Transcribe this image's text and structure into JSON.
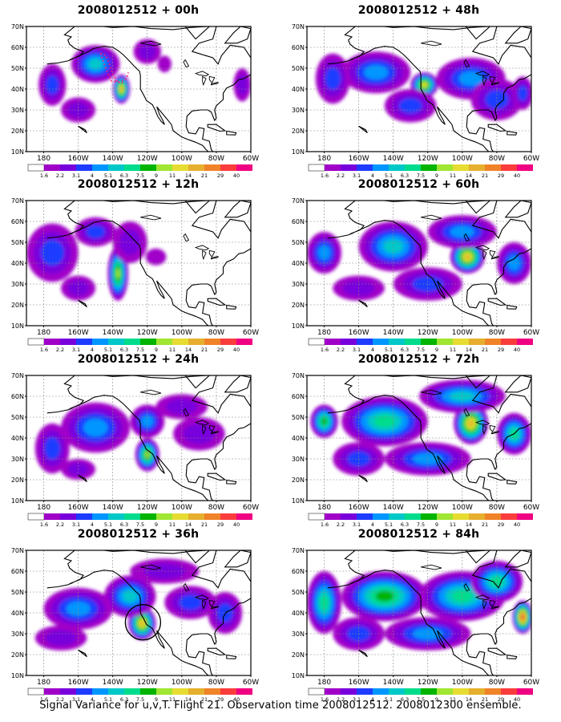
{
  "footer": "Signal Variance for u,v,T. Flight 21. Observation time 2008012512. 2008012300 ensemble.",
  "map": {
    "lat_labels": [
      "70N",
      "60N",
      "50N",
      "40N",
      "30N",
      "20N",
      "10N"
    ],
    "lon_labels": [
      "180",
      "160W",
      "140W",
      "120W",
      "100W",
      "80W",
      "60W"
    ],
    "lon_range": [
      -190,
      -60
    ],
    "lat_range": [
      10,
      70
    ]
  },
  "colorbar": {
    "levels": [
      "1.6",
      "2.2",
      "3.1",
      "4",
      "5.1",
      "6.3",
      "7.5",
      "9",
      "11",
      "14",
      "21",
      "29",
      "40"
    ],
    "colors": [
      "#a000c8",
      "#7800dc",
      "#1e3cff",
      "#0096ff",
      "#00c8c8",
      "#00dc8c",
      "#00b400",
      "#a0e632",
      "#e6dc32",
      "#e6af2d",
      "#f08228",
      "#fa3c3c",
      "#f00082"
    ]
  },
  "panels": [
    {
      "title": "2008012512 + 00h",
      "lead_hours": 0,
      "blobs": [
        [
          -150,
          52,
          14,
          9,
          5
        ],
        [
          -135,
          40,
          5,
          7,
          10
        ],
        [
          -175,
          42,
          8,
          10,
          3
        ],
        [
          -160,
          30,
          10,
          6,
          2
        ],
        [
          -120,
          58,
          8,
          6,
          2
        ],
        [
          -110,
          52,
          4,
          4,
          1
        ],
        [
          -65,
          42,
          5,
          8,
          2
        ]
      ]
    },
    {
      "title": "2008012512 + 12h",
      "lead_hours": 12,
      "blobs": [
        [
          -175,
          45,
          15,
          14,
          3
        ],
        [
          -137,
          35,
          6,
          13,
          8
        ],
        [
          -150,
          55,
          12,
          7,
          3
        ],
        [
          -130,
          50,
          10,
          10,
          2
        ],
        [
          -160,
          28,
          10,
          6,
          2
        ],
        [
          -115,
          43,
          6,
          4,
          1
        ]
      ]
    },
    {
      "title": "2008012512 + 24h",
      "lead_hours": 24,
      "blobs": [
        [
          -150,
          45,
          20,
          12,
          4
        ],
        [
          -120,
          32,
          7,
          8,
          8
        ],
        [
          -120,
          48,
          10,
          8,
          4
        ],
        [
          -175,
          35,
          10,
          12,
          3
        ],
        [
          -90,
          42,
          15,
          8,
          2
        ],
        [
          -100,
          55,
          15,
          6,
          2
        ],
        [
          -160,
          25,
          10,
          5,
          2
        ]
      ]
    },
    {
      "title": "2008012512 + 36h",
      "lead_hours": 36,
      "blobs": [
        [
          -123,
          35,
          8,
          8,
          10
        ],
        [
          -130,
          48,
          15,
          10,
          5
        ],
        [
          -160,
          42,
          20,
          10,
          4
        ],
        [
          -95,
          45,
          15,
          8,
          3
        ],
        [
          -75,
          40,
          10,
          10,
          3
        ],
        [
          -170,
          28,
          15,
          6,
          2
        ],
        [
          -110,
          60,
          20,
          6,
          2
        ]
      ]
    },
    {
      "title": "2008012512 + 48h",
      "lead_hours": 48,
      "blobs": [
        [
          -122,
          42,
          8,
          6,
          9
        ],
        [
          -150,
          48,
          20,
          10,
          4
        ],
        [
          -175,
          45,
          10,
          12,
          3
        ],
        [
          -95,
          45,
          20,
          10,
          4
        ],
        [
          -80,
          35,
          15,
          10,
          3
        ],
        [
          -130,
          32,
          15,
          8,
          3
        ],
        [
          -65,
          38,
          6,
          8,
          3
        ]
      ]
    },
    {
      "title": "2008012512 + 60h",
      "lead_hours": 60,
      "blobs": [
        [
          -97,
          43,
          10,
          8,
          10
        ],
        [
          -140,
          48,
          20,
          12,
          5
        ],
        [
          -100,
          55,
          20,
          8,
          4
        ],
        [
          -70,
          40,
          10,
          10,
          4
        ],
        [
          -180,
          45,
          10,
          10,
          4
        ],
        [
          -120,
          30,
          20,
          8,
          3
        ],
        [
          -160,
          28,
          15,
          6,
          2
        ]
      ]
    },
    {
      "title": "2008012512 + 72h",
      "lead_hours": 72,
      "blobs": [
        [
          -95,
          47,
          10,
          10,
          10
        ],
        [
          -145,
          48,
          25,
          12,
          6
        ],
        [
          -180,
          48,
          8,
          8,
          7
        ],
        [
          -70,
          42,
          10,
          10,
          6
        ],
        [
          -100,
          60,
          25,
          8,
          5
        ],
        [
          -120,
          30,
          25,
          8,
          4
        ],
        [
          -160,
          30,
          15,
          8,
          3
        ]
      ]
    },
    {
      "title": "2008012512 + 84h",
      "lead_hours": 84,
      "blobs": [
        [
          -65,
          38,
          6,
          8,
          12
        ],
        [
          -145,
          48,
          25,
          12,
          7
        ],
        [
          -100,
          48,
          25,
          12,
          6
        ],
        [
          -180,
          45,
          10,
          15,
          6
        ],
        [
          -80,
          55,
          15,
          10,
          6
        ],
        [
          -120,
          30,
          25,
          8,
          4
        ],
        [
          -160,
          30,
          15,
          8,
          3
        ]
      ]
    }
  ]
}
